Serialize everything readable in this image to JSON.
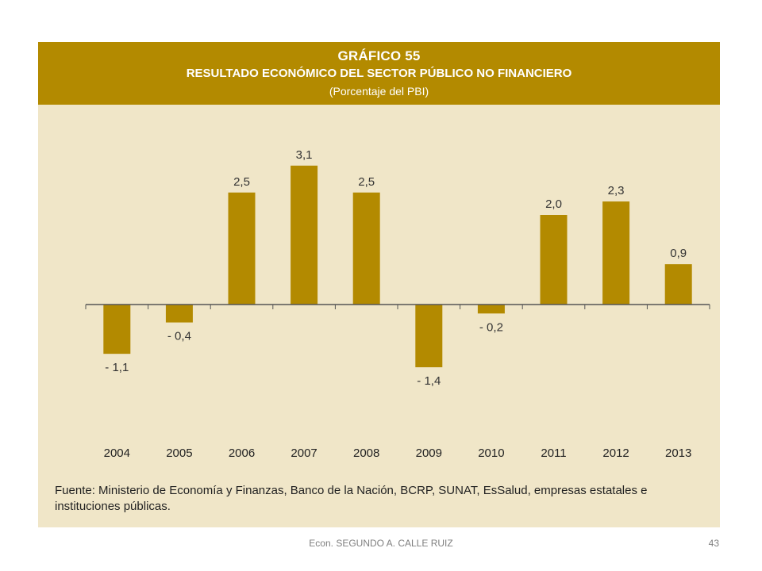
{
  "header": {
    "chart_number": "GRÁFICO 55",
    "title": "RESULTADO ECONÓMICO DEL SECTOR PÚBLICO NO FINANCIERO",
    "subtitle": "(Porcentaje del PBI)"
  },
  "source": "Fuente: Ministerio de Economía y Finanzas, Banco de la Nación, BCRP, SUNAT, EsSalud, empresas estatales e instituciones públicas.",
  "footer": {
    "author": "Econ. SEGUNDO A. CALLE RUIZ",
    "page_number": "43"
  },
  "colors": {
    "header_bg": "#b38a00",
    "panel_bg": "#f0e6c8",
    "bar": "#b38a00",
    "axis": "#555555"
  },
  "chart_data": {
    "type": "bar",
    "title": "RESULTADO ECONÓMICO DEL SECTOR PÚBLICO NO FINANCIERO",
    "subtitle": "(Porcentaje del PBI)",
    "categories": [
      "2004",
      "2005",
      "2006",
      "2007",
      "2008",
      "2009",
      "2010",
      "2011",
      "2012",
      "2013"
    ],
    "values": [
      -1.1,
      -0.4,
      2.5,
      3.1,
      2.5,
      -1.4,
      -0.2,
      2.0,
      2.3,
      0.9
    ],
    "value_labels": [
      "- 1,1",
      "- 0,4",
      "2,5",
      "3,1",
      "2,5",
      "- 1,4",
      "- 0,2",
      "2,0",
      "2,3",
      "0,9"
    ],
    "xlabel": "",
    "ylabel": "",
    "ylim": [
      -1.4,
      3.1
    ],
    "grid": false,
    "legend": "none"
  }
}
